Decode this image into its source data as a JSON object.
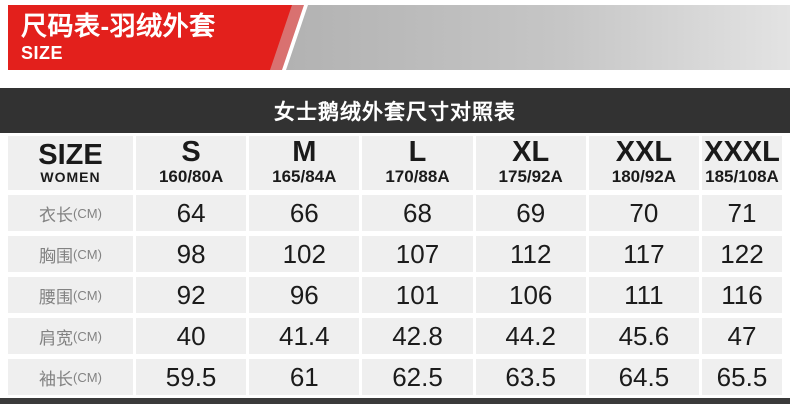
{
  "banner": {
    "title": "尺码表-羽绒外套",
    "subtitle": "SIZE"
  },
  "section_title": "女士鹅绒外套尺寸对照表",
  "table": {
    "corner": {
      "top": "SIZE",
      "bottom": "WOMEN"
    },
    "columns": [
      {
        "size": "S",
        "spec": "160/80A"
      },
      {
        "size": "M",
        "spec": "165/84A"
      },
      {
        "size": "L",
        "spec": "170/88A"
      },
      {
        "size": "XL",
        "spec": "175/92A"
      },
      {
        "size": "XXL",
        "spec": "180/92A"
      },
      {
        "size": "XXXL",
        "spec": "185/108A"
      }
    ],
    "rows": [
      {
        "label": "衣长",
        "unit": "(CM)",
        "values": [
          "64",
          "66",
          "68",
          "69",
          "70",
          "71"
        ]
      },
      {
        "label": "胸围",
        "unit": "(CM)",
        "values": [
          "98",
          "102",
          "107",
          "112",
          "117",
          "122"
        ]
      },
      {
        "label": "腰围",
        "unit": "(CM)",
        "values": [
          "92",
          "96",
          "101",
          "106",
          "111",
          "116"
        ]
      },
      {
        "label": "肩宽",
        "unit": "(CM)",
        "values": [
          "40",
          "41.4",
          "42.8",
          "44.2",
          "45.6",
          "47"
        ]
      },
      {
        "label": "袖长",
        "unit": "(CM)",
        "values": [
          "59.5",
          "61",
          "62.5",
          "63.5",
          "64.5",
          "65.5"
        ]
      }
    ]
  },
  "colors": {
    "accent_red": "#e3201c",
    "stripe_pink": "#d97170",
    "band_gray_start": "#b2b2b2",
    "band_gray_end": "#e3e3e3",
    "bar_dark": "#323232",
    "cell_bg": "#efefef",
    "label_gray": "#828282"
  }
}
